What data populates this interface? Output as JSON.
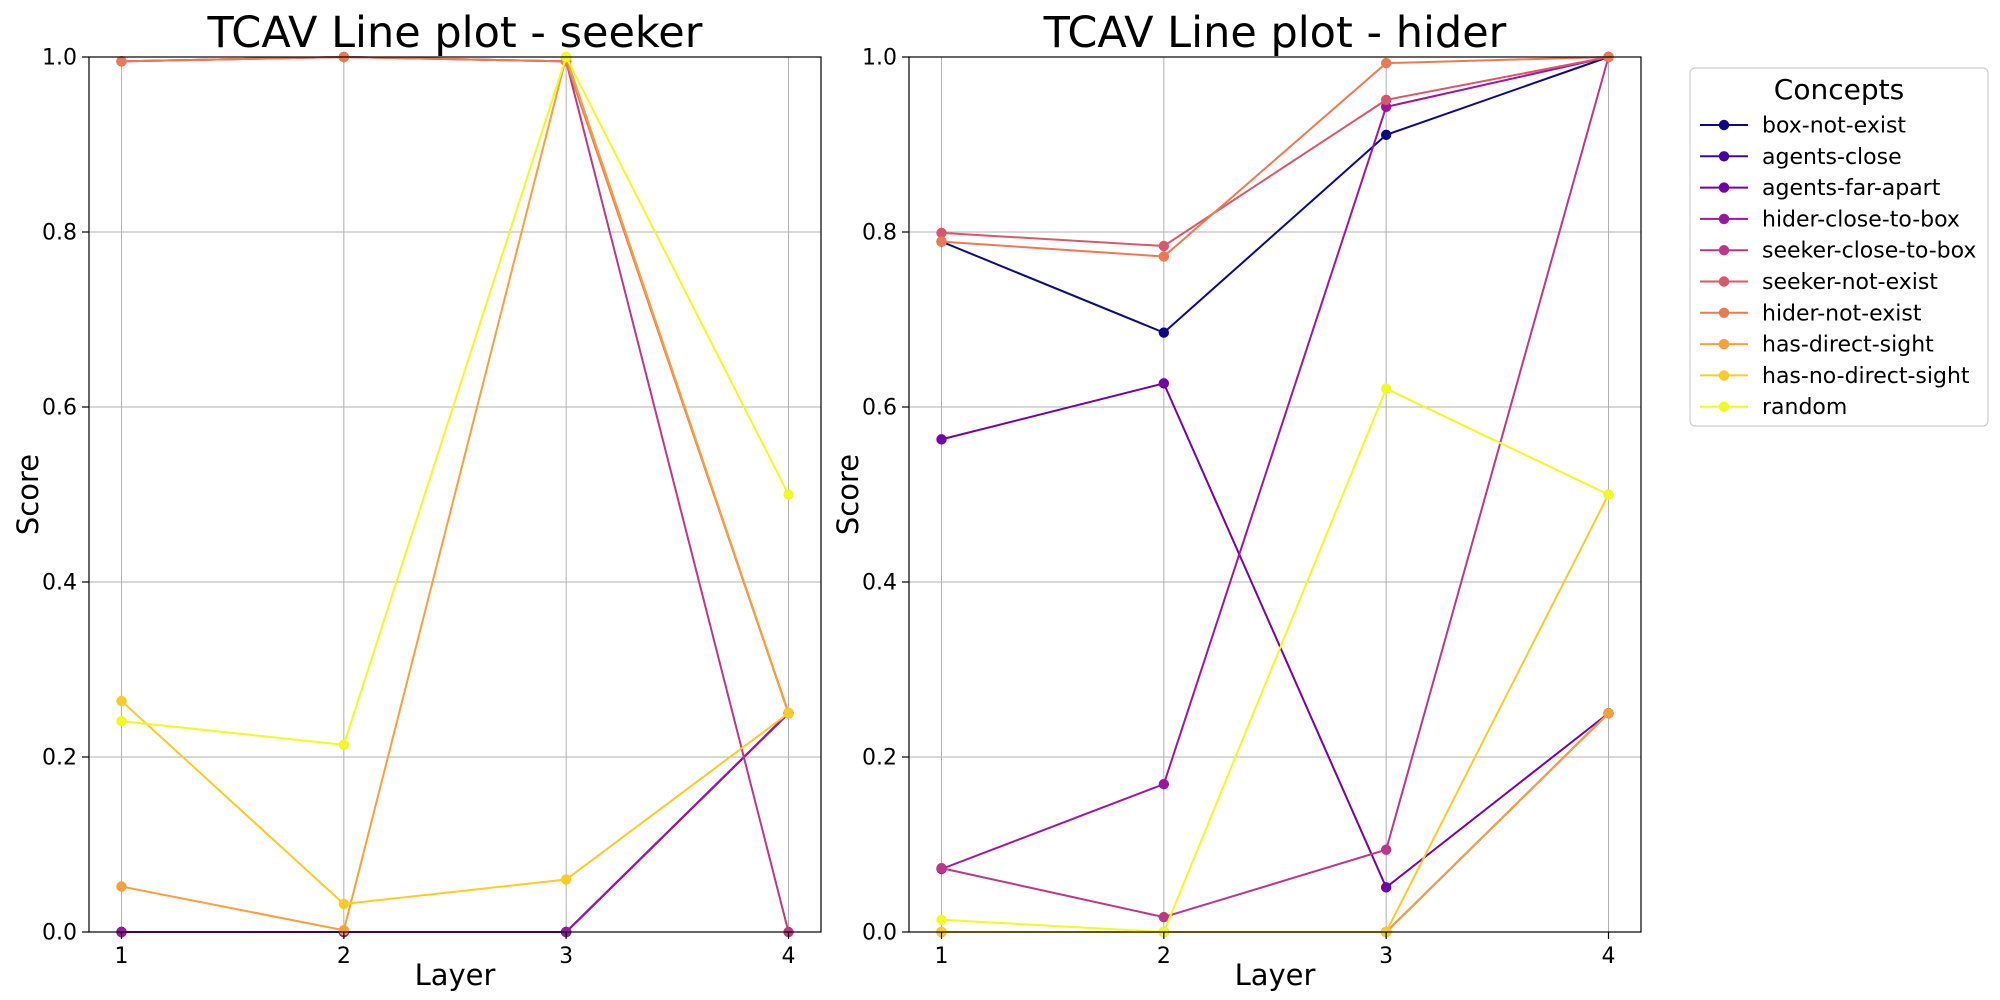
{
  "figure": {
    "legend_title": "Concepts"
  },
  "chart_data": [
    {
      "type": "line",
      "title": "TCAV Line plot - seeker",
      "xlabel": "Layer",
      "ylabel": "Score",
      "x": [
        1,
        2,
        3,
        4
      ],
      "xticks": [
        "1",
        "2",
        "3",
        "4"
      ],
      "yticks": [
        "0.0",
        "0.2",
        "0.4",
        "0.6",
        "0.8",
        "1.0"
      ],
      "ylim": [
        0,
        1
      ],
      "grid": true,
      "series": [
        {
          "name": "box-not-exist",
          "color": "#0d0887",
          "values": [
            0.0,
            0.0,
            0.0,
            0.25
          ]
        },
        {
          "name": "agents-close",
          "color": "#4903a0",
          "values": [
            0.0,
            0.0,
            0.0,
            0.25
          ]
        },
        {
          "name": "agents-far-apart",
          "color": "#7201a8",
          "values": [
            0.0,
            0.0,
            0.0,
            0.25
          ]
        },
        {
          "name": "hider-close-to-box",
          "color": "#9c179e",
          "values": [
            0.0,
            0.0,
            0.0,
            0.25
          ]
        },
        {
          "name": "seeker-close-to-box",
          "color": "#bd3786",
          "values": [
            0.995,
            1.0,
            0.995,
            0.0
          ]
        },
        {
          "name": "seeker-not-exist",
          "color": "#d8576b",
          "values": [
            0.995,
            1.0,
            0.995,
            0.25
          ]
        },
        {
          "name": "hider-not-exist",
          "color": "#ed7953",
          "values": [
            0.995,
            1.0,
            0.995,
            0.25
          ]
        },
        {
          "name": "has-direct-sight",
          "color": "#fb9f3a",
          "values": [
            0.052,
            0.002,
            1.0,
            0.25
          ]
        },
        {
          "name": "has-no-direct-sight",
          "color": "#fdca26",
          "values": [
            0.264,
            0.032,
            0.06,
            0.25
          ]
        },
        {
          "name": "random",
          "color": "#f0f921",
          "values": [
            0.241,
            0.214,
            1.0,
            0.5
          ]
        }
      ]
    },
    {
      "type": "line",
      "title": "TCAV Line plot - hider",
      "xlabel": "Layer",
      "ylabel": "Score",
      "x": [
        1,
        2,
        3,
        4
      ],
      "xticks": [
        "1",
        "2",
        "3",
        "4"
      ],
      "yticks": [
        "0.0",
        "0.2",
        "0.4",
        "0.6",
        "0.8",
        "1.0"
      ],
      "ylim": [
        0,
        1
      ],
      "grid": true,
      "series": [
        {
          "name": "box-not-exist",
          "color": "#0d0887",
          "values": [
            0.789,
            0.685,
            0.911,
            1.0
          ]
        },
        {
          "name": "agents-close",
          "color": "#4903a0",
          "values": [
            0.0,
            0.0,
            0.0,
            0.25
          ]
        },
        {
          "name": "agents-far-apart",
          "color": "#7201a8",
          "values": [
            0.563,
            0.627,
            0.051,
            0.25
          ]
        },
        {
          "name": "hider-close-to-box",
          "color": "#9c179e",
          "values": [
            0.072,
            0.169,
            0.943,
            1.0
          ]
        },
        {
          "name": "seeker-close-to-box",
          "color": "#bd3786",
          "values": [
            0.073,
            0.017,
            0.094,
            1.0
          ]
        },
        {
          "name": "seeker-not-exist",
          "color": "#d8576b",
          "values": [
            0.799,
            0.784,
            0.951,
            1.0
          ]
        },
        {
          "name": "hider-not-exist",
          "color": "#ed7953",
          "values": [
            0.789,
            0.772,
            0.993,
            1.0
          ]
        },
        {
          "name": "has-direct-sight",
          "color": "#fb9f3a",
          "values": [
            0.0,
            0.0,
            0.0,
            0.25
          ]
        },
        {
          "name": "has-no-direct-sight",
          "color": "#fdca26",
          "values": [
            0.0,
            0.0,
            0.0,
            0.5
          ]
        },
        {
          "name": "random",
          "color": "#f0f921",
          "values": [
            0.014,
            0.0,
            0.621,
            0.5
          ]
        }
      ]
    }
  ]
}
